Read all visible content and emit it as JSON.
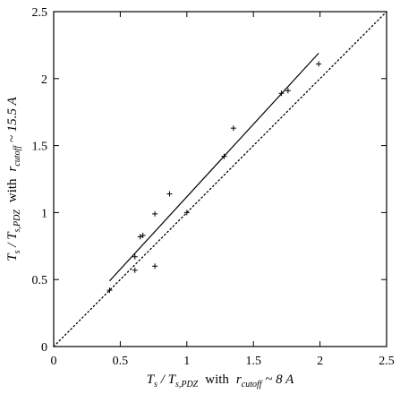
{
  "chart_data": {
    "type": "scatter",
    "xlim": [
      0,
      2.5
    ],
    "ylim": [
      0,
      2.5
    ],
    "x_ticks": [
      0,
      0.5,
      1,
      1.5,
      2,
      2.5
    ],
    "y_ticks": [
      0,
      0.5,
      1,
      1.5,
      2,
      2.5
    ],
    "x_tick_labels": [
      "0",
      "0.5",
      "1",
      "1.5",
      "2",
      "2.5"
    ],
    "y_tick_labels": [
      "0",
      "0.5",
      "1",
      "1.5",
      "2",
      "2.5"
    ],
    "grid": false,
    "xlabel": {
      "T": "T",
      "T_sub": "s",
      "slash": " / T",
      "ref_sub": "s,PDZ",
      "with": "with",
      "r": "r",
      "r_sub": "cutoff",
      "tail": " ~ 8 A"
    },
    "ylabel": {
      "T": "T",
      "T_sub": "s",
      "slash": " / T",
      "ref_sub": "s,PDZ",
      "with": "with",
      "r": "r",
      "r_sub": "cutoff",
      "tail": " ~ 15.5 A"
    },
    "points": [
      {
        "x": 0.42,
        "y": 0.42
      },
      {
        "x": 0.61,
        "y": 0.57
      },
      {
        "x": 0.61,
        "y": 0.67
      },
      {
        "x": 0.65,
        "y": 0.82
      },
      {
        "x": 0.67,
        "y": 0.83
      },
      {
        "x": 0.76,
        "y": 0.99
      },
      {
        "x": 0.76,
        "y": 0.6
      },
      {
        "x": 0.87,
        "y": 1.14
      },
      {
        "x": 1.0,
        "y": 1.0
      },
      {
        "x": 1.28,
        "y": 1.42
      },
      {
        "x": 1.35,
        "y": 1.63
      },
      {
        "x": 1.71,
        "y": 1.89
      },
      {
        "x": 1.76,
        "y": 1.91
      },
      {
        "x": 1.99,
        "y": 2.11
      }
    ],
    "fit_line": {
      "x": [
        0.42,
        1.99
      ],
      "y": [
        0.49,
        2.19
      ]
    },
    "identity_line": {
      "x": [
        0,
        2.5
      ],
      "y": [
        0,
        2.5
      ]
    }
  }
}
